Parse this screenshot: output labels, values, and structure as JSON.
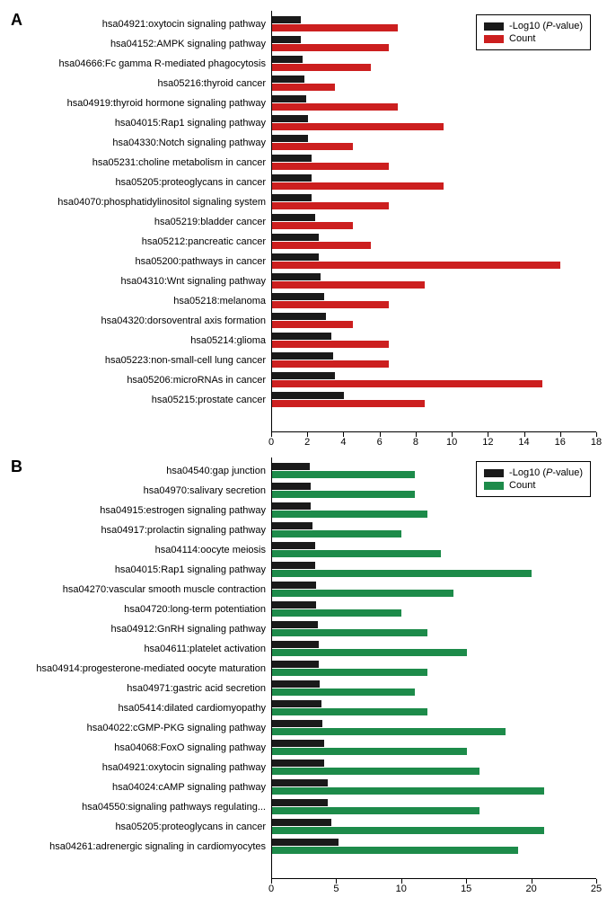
{
  "legend": {
    "logp": "-Log10 (",
    "logp_em": "P",
    "logp_suffix": "-value)",
    "count": "Count",
    "logp_color": "#1a1a1a",
    "count_color_a": "#cc1f1f",
    "count_color_b": "#1d8b4a"
  },
  "panelA": {
    "label": "A",
    "xmax": 18,
    "xstep": 2,
    "bar_logp_color": "#1a1a1a",
    "bar_count_color": "#cc1f1f",
    "rows": [
      {
        "label": "hsa04921:oxytocin signaling pathway",
        "logp": 1.6,
        "count": 7
      },
      {
        "label": "hsa04152:AMPK signaling pathway",
        "logp": 1.6,
        "count": 6.5
      },
      {
        "label": "hsa04666:Fc gamma R-mediated phagocytosis",
        "logp": 1.7,
        "count": 5.5
      },
      {
        "label": "hsa05216:thyroid cancer",
        "logp": 1.8,
        "count": 3.5
      },
      {
        "label": "hsa04919:thyroid hormone signaling pathway",
        "logp": 1.9,
        "count": 7
      },
      {
        "label": "hsa04015:Rap1 signaling pathway",
        "logp": 2.0,
        "count": 9.5
      },
      {
        "label": "hsa04330:Notch signaling pathway",
        "logp": 2.0,
        "count": 4.5
      },
      {
        "label": "hsa05231:choline metabolism in cancer",
        "logp": 2.2,
        "count": 6.5
      },
      {
        "label": "hsa05205:proteoglycans in cancer",
        "logp": 2.2,
        "count": 9.5
      },
      {
        "label": "hsa04070:phosphatidylinositol signaling system",
        "logp": 2.2,
        "count": 6.5
      },
      {
        "label": "hsa05219:bladder cancer",
        "logp": 2.4,
        "count": 4.5
      },
      {
        "label": "hsa05212:pancreatic cancer",
        "logp": 2.6,
        "count": 5.5
      },
      {
        "label": "hsa05200:pathways in cancer",
        "logp": 2.6,
        "count": 16
      },
      {
        "label": "hsa04310:Wnt signaling pathway",
        "logp": 2.7,
        "count": 8.5
      },
      {
        "label": "hsa05218:melanoma",
        "logp": 2.9,
        "count": 6.5
      },
      {
        "label": "hsa04320:dorsoventral axis formation",
        "logp": 3.0,
        "count": 4.5
      },
      {
        "label": "hsa05214:glioma",
        "logp": 3.3,
        "count": 6.5
      },
      {
        "label": "hsa05223:non-small-cell lung cancer",
        "logp": 3.4,
        "count": 6.5
      },
      {
        "label": "hsa05206:microRNAs in cancer",
        "logp": 3.5,
        "count": 15
      },
      {
        "label": "hsa05215:prostate cancer",
        "logp": 4.0,
        "count": 8.5
      }
    ]
  },
  "panelB": {
    "label": "B",
    "xmax": 25,
    "xstep": 5,
    "bar_logp_color": "#1a1a1a",
    "bar_count_color": "#1d8b4a",
    "rows": [
      {
        "label": "hsa04540:gap junction",
        "logp": 2.9,
        "count": 11
      },
      {
        "label": "hsa04970:salivary secretion",
        "logp": 3.0,
        "count": 11
      },
      {
        "label": "hsa04915:estrogen signaling pathway",
        "logp": 3.0,
        "count": 12
      },
      {
        "label": "hsa04917:prolactin signaling pathway",
        "logp": 3.1,
        "count": 10
      },
      {
        "label": "hsa04114:oocyte meiosis",
        "logp": 3.3,
        "count": 13
      },
      {
        "label": "hsa04015:Rap1 signaling pathway",
        "logp": 3.3,
        "count": 20
      },
      {
        "label": "hsa04270:vascular smooth muscle contraction",
        "logp": 3.4,
        "count": 14
      },
      {
        "label": "hsa04720:long-term potentiation",
        "logp": 3.4,
        "count": 10
      },
      {
        "label": "hsa04912:GnRH signaling pathway",
        "logp": 3.5,
        "count": 12
      },
      {
        "label": "hsa04611:platelet activation",
        "logp": 3.6,
        "count": 15
      },
      {
        "label": "hsa04914:progesterone-mediated oocyte maturation",
        "logp": 3.6,
        "count": 12
      },
      {
        "label": "hsa04971:gastric acid secretion",
        "logp": 3.7,
        "count": 11
      },
      {
        "label": "hsa05414:dilated cardiomyopathy",
        "logp": 3.8,
        "count": 12
      },
      {
        "label": "hsa04022:cGMP-PKG signaling pathway",
        "logp": 3.9,
        "count": 18
      },
      {
        "label": "hsa04068:FoxO signaling pathway",
        "logp": 4.0,
        "count": 15
      },
      {
        "label": "hsa04921:oxytocin signaling pathway",
        "logp": 4.0,
        "count": 16
      },
      {
        "label": "hsa04024:cAMP signaling pathway",
        "logp": 4.3,
        "count": 21
      },
      {
        "label": "hsa04550:signaling pathways regulating...",
        "logp": 4.3,
        "count": 16
      },
      {
        "label": "hsa05205:proteoglycans in cancer",
        "logp": 4.6,
        "count": 21
      },
      {
        "label": "hsa04261:adrenergic signaling in cardiomyocytes",
        "logp": 5.1,
        "count": 19
      }
    ]
  }
}
